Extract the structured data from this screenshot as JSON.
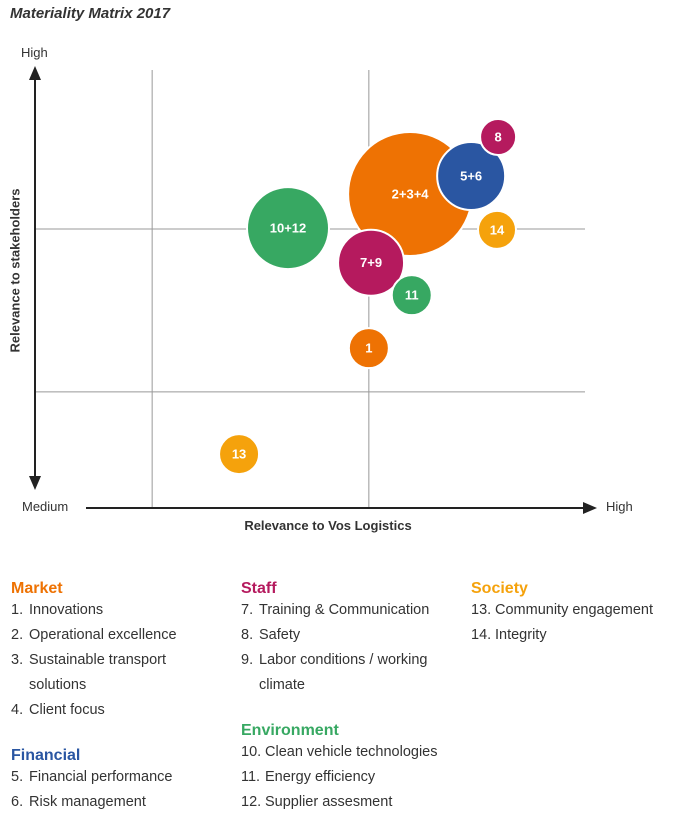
{
  "chart_data": {
    "type": "bubble",
    "title": "Materiality Matrix 2017",
    "xlabel": "Relevance to Vos Logistics",
    "ylabel": "Relevance to stakeholders",
    "x_ticks": {
      "low": "Medium",
      "high": "High"
    },
    "y_ticks": {
      "low": "Medium",
      "high": "High"
    },
    "xlim": [
      0,
      100
    ],
    "ylim": [
      0,
      100
    ],
    "gridlines": {
      "x": [
        21.3,
        60.7
      ],
      "y": [
        63.7,
        26.5
      ]
    },
    "colors": {
      "Market": "#ee7203",
      "Financial": "#2a56a2",
      "Staff": "#b51a5e",
      "Environment": "#37a862",
      "Society": "#f5a20c"
    },
    "bubbles": [
      {
        "label": "10+12",
        "group": "Environment",
        "x": 46.0,
        "y": 63.9,
        "size": 41
      },
      {
        "label": "2+3+4",
        "group": "Market",
        "x": 68.2,
        "y": 71.7,
        "size": 62
      },
      {
        "label": "5+6",
        "group": "Financial",
        "x": 79.3,
        "y": 75.8,
        "size": 34
      },
      {
        "label": "8",
        "group": "Staff",
        "x": 84.2,
        "y": 84.7,
        "size": 18
      },
      {
        "label": "14",
        "group": "Society",
        "x": 84.0,
        "y": 63.5,
        "size": 19
      },
      {
        "label": "7+9",
        "group": "Staff",
        "x": 61.1,
        "y": 56.0,
        "size": 33
      },
      {
        "label": "11",
        "group": "Environment",
        "x": 68.5,
        "y": 48.6,
        "size": 20
      },
      {
        "label": "1",
        "group": "Market",
        "x": 60.7,
        "y": 36.5,
        "size": 20
      },
      {
        "label": "13",
        "group": "Society",
        "x": 37.1,
        "y": 12.3,
        "size": 20
      }
    ]
  },
  "legend": {
    "market": {
      "heading": "Market",
      "items": [
        {
          "num": "1.",
          "text": "Innovations"
        },
        {
          "num": "2.",
          "text": "Operational excellence"
        },
        {
          "num": "3.",
          "text": "Sustainable transport solutions"
        },
        {
          "num": "4.",
          "text": "Client focus"
        }
      ]
    },
    "financial": {
      "heading": "Financial",
      "items": [
        {
          "num": "5.",
          "text": "Financial performance"
        },
        {
          "num": "6.",
          "text": "Risk management"
        }
      ]
    },
    "staff": {
      "heading": "Staff",
      "items": [
        {
          "num": "7.",
          "text": "Training & Communication"
        },
        {
          "num": "8.",
          "text": "Safety"
        },
        {
          "num": "9.",
          "text": "Labor conditions / working climate"
        }
      ]
    },
    "environment": {
      "heading": "Environment",
      "items": [
        {
          "num": "10.",
          "text": "Clean vehicle technologies"
        },
        {
          "num": "11.",
          "text": "Energy efficiency"
        },
        {
          "num": "12.",
          "text": "Supplier assesment"
        }
      ]
    },
    "society": {
      "heading": "Society",
      "items": [
        {
          "num": "13.",
          "text": "Community engagement"
        },
        {
          "num": "14.",
          "text": "Integrity"
        }
      ]
    }
  }
}
